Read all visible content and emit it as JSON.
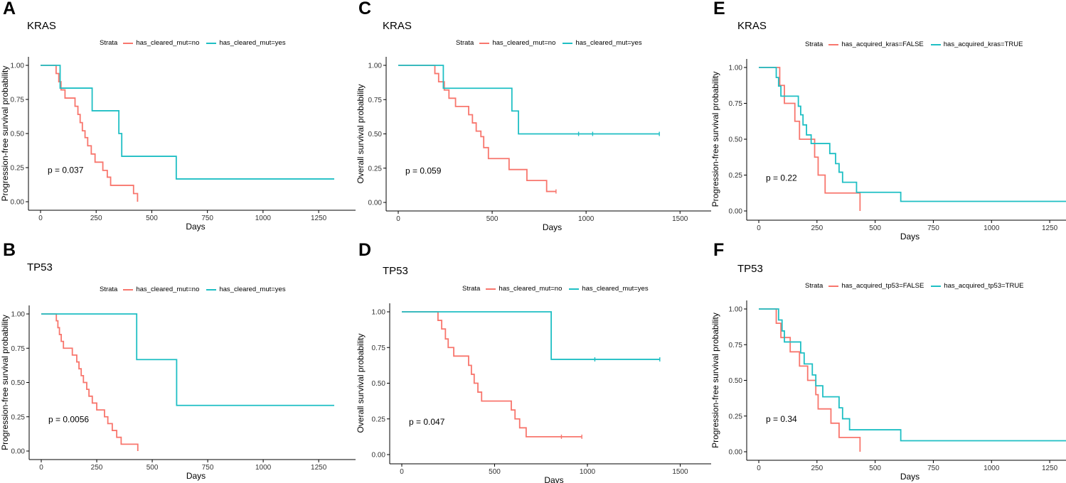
{
  "colors": {
    "no": "#f8766d",
    "yes": "#1fbfc4"
  },
  "chart_data": [
    {
      "id": "A",
      "panel": "A",
      "gene": "KRAS",
      "type": "line",
      "legend": {
        "title": "Strata",
        "entries": [
          "has_cleared_mut=no",
          "has_cleared_mut=yes"
        ]
      },
      "ylabel": "Progression-free survival probability",
      "xlabel": "Days",
      "pvalue": "p = 0.037",
      "xlim": [
        0,
        1320
      ],
      "ylim": [
        0,
        1
      ],
      "xticks": [
        0,
        250,
        500,
        750,
        1000,
        1250
      ],
      "yticks": [
        "0.00",
        "0.25",
        "0.50",
        "0.75",
        "1.00"
      ],
      "series": [
        {
          "name": "has_cleared_mut=no",
          "steps": [
            [
              0,
              1.0
            ],
            [
              70,
              0.94
            ],
            [
              82,
              0.88
            ],
            [
              92,
              0.82
            ],
            [
              110,
              0.76
            ],
            [
              155,
              0.7
            ],
            [
              168,
              0.64
            ],
            [
              178,
              0.58
            ],
            [
              188,
              0.52
            ],
            [
              200,
              0.47
            ],
            [
              212,
              0.41
            ],
            [
              228,
              0.35
            ],
            [
              245,
              0.29
            ],
            [
              280,
              0.23
            ],
            [
              300,
              0.18
            ],
            [
              315,
              0.12
            ],
            [
              418,
              0.06
            ],
            [
              436,
              0.0
            ]
          ],
          "end": 436,
          "censors": []
        },
        {
          "name": "has_cleared_mut=yes",
          "steps": [
            [
              0,
              1.0
            ],
            [
              88,
              0.833
            ],
            [
              232,
              0.667
            ],
            [
              352,
              0.5
            ],
            [
              365,
              0.333
            ],
            [
              610,
              0.167
            ]
          ],
          "end": 1320,
          "censors": []
        }
      ]
    },
    {
      "id": "C",
      "panel": "C",
      "gene": "KRAS",
      "type": "line",
      "legend": {
        "title": "Strata",
        "entries": [
          "has_cleared_mut=no",
          "has_cleared_mut=yes"
        ]
      },
      "ylabel": "Overall survival probability",
      "xlabel": "Days",
      "pvalue": "p = 0.059",
      "xlim": [
        0,
        1590
      ],
      "ylim": [
        0,
        1
      ],
      "xticks": [
        0,
        500,
        1000,
        1500
      ],
      "yticks": [
        "0.00",
        "0.25",
        "0.50",
        "0.75",
        "1.00"
      ],
      "series": [
        {
          "name": "has_cleared_mut=no",
          "steps": [
            [
              0,
              1.0
            ],
            [
              195,
              0.94
            ],
            [
              215,
              0.88
            ],
            [
              245,
              0.82
            ],
            [
              270,
              0.76
            ],
            [
              305,
              0.7
            ],
            [
              375,
              0.64
            ],
            [
              395,
              0.58
            ],
            [
              415,
              0.52
            ],
            [
              440,
              0.48
            ],
            [
              455,
              0.4
            ],
            [
              480,
              0.32
            ],
            [
              590,
              0.24
            ],
            [
              685,
              0.16
            ],
            [
              790,
              0.08
            ]
          ],
          "end": 840,
          "censors": [
            840
          ]
        },
        {
          "name": "has_cleared_mut=yes",
          "steps": [
            [
              0,
              1.0
            ],
            [
              240,
              0.833
            ],
            [
              605,
              0.667
            ],
            [
              640,
              0.5
            ]
          ],
          "end": 1390,
          "censors": [
            960,
            1035,
            1390
          ]
        }
      ]
    },
    {
      "id": "E",
      "panel": "E",
      "gene": "KRAS",
      "type": "line",
      "legend": {
        "title": "Strata",
        "entries": [
          "has_acquired_kras=FALSE",
          "has_acquired_kras=TRUE"
        ]
      },
      "ylabel": "Progression-free survival probability",
      "xlabel": "Days",
      "pvalue": "p = 0.22",
      "xlim": [
        0,
        1320
      ],
      "ylim": [
        0,
        1
      ],
      "xticks": [
        0,
        250,
        500,
        750,
        1000,
        1250
      ],
      "yticks": [
        "0.00",
        "0.25",
        "0.50",
        "0.75",
        "1.00"
      ],
      "series": [
        {
          "name": "has_acquired_kras=FALSE",
          "steps": [
            [
              0,
              1.0
            ],
            [
              90,
              0.875
            ],
            [
              110,
              0.75
            ],
            [
              155,
              0.625
            ],
            [
              175,
              0.5
            ],
            [
              240,
              0.375
            ],
            [
              255,
              0.25
            ],
            [
              285,
              0.125
            ],
            [
              435,
              0.0
            ]
          ],
          "end": 435,
          "censors": []
        },
        {
          "name": "has_acquired_kras=TRUE",
          "steps": [
            [
              0,
              1.0
            ],
            [
              75,
              0.93
            ],
            [
              85,
              0.87
            ],
            [
              95,
              0.8
            ],
            [
              170,
              0.73
            ],
            [
              180,
              0.67
            ],
            [
              190,
              0.6
            ],
            [
              205,
              0.53
            ],
            [
              225,
              0.47
            ],
            [
              305,
              0.4
            ],
            [
              330,
              0.33
            ],
            [
              345,
              0.27
            ],
            [
              360,
              0.2
            ],
            [
              420,
              0.13
            ],
            [
              610,
              0.067
            ]
          ],
          "end": 1320,
          "censors": []
        }
      ]
    },
    {
      "id": "B",
      "panel": "B",
      "gene": "TP53",
      "type": "line",
      "legend": {
        "title": "Strata",
        "entries": [
          "has_cleared_mut=no",
          "has_cleared_mut=yes"
        ]
      },
      "ylabel": "Progression-free survival probability",
      "xlabel": "Days",
      "pvalue": "p = 0.0056",
      "xlim": [
        0,
        1320
      ],
      "ylim": [
        0,
        1
      ],
      "xticks": [
        0,
        250,
        500,
        750,
        1000,
        1250
      ],
      "yticks": [
        "0.00",
        "0.25",
        "0.50",
        "0.75",
        "1.00"
      ],
      "series": [
        {
          "name": "has_cleared_mut=no",
          "steps": [
            [
              0,
              1.0
            ],
            [
              68,
              0.95
            ],
            [
              75,
              0.9
            ],
            [
              82,
              0.85
            ],
            [
              90,
              0.8
            ],
            [
              100,
              0.75
            ],
            [
              140,
              0.7
            ],
            [
              160,
              0.65
            ],
            [
              170,
              0.6
            ],
            [
              180,
              0.55
            ],
            [
              190,
              0.5
            ],
            [
              205,
              0.45
            ],
            [
              215,
              0.4
            ],
            [
              230,
              0.35
            ],
            [
              250,
              0.3
            ],
            [
              285,
              0.25
            ],
            [
              300,
              0.2
            ],
            [
              320,
              0.15
            ],
            [
              340,
              0.1
            ],
            [
              360,
              0.05
            ],
            [
              435,
              0.0
            ]
          ],
          "end": 435,
          "censors": []
        },
        {
          "name": "has_cleared_mut=yes",
          "steps": [
            [
              0,
              1.0
            ],
            [
              430,
              0.667
            ],
            [
              610,
              0.333
            ]
          ],
          "end": 1320,
          "censors": []
        }
      ]
    },
    {
      "id": "D",
      "panel": "D",
      "gene": "TP53",
      "type": "line",
      "legend": {
        "title": "Strata",
        "entries": [
          "has_cleared_mut=no",
          "has_cleared_mut=yes"
        ]
      },
      "ylabel": "Overall survival probability",
      "xlabel": "Days",
      "pvalue": "p = 0.047",
      "xlim": [
        0,
        1590
      ],
      "ylim": [
        0,
        1
      ],
      "xticks": [
        0,
        500,
        1000,
        1500
      ],
      "yticks": [
        "0.00",
        "0.25",
        "0.50",
        "0.75",
        "1.00"
      ],
      "series": [
        {
          "name": "has_cleared_mut=no",
          "steps": [
            [
              0,
              1.0
            ],
            [
              195,
              0.94
            ],
            [
              215,
              0.88
            ],
            [
              235,
              0.81
            ],
            [
              250,
              0.75
            ],
            [
              280,
              0.69
            ],
            [
              360,
              0.625
            ],
            [
              375,
              0.5625
            ],
            [
              390,
              0.5
            ],
            [
              410,
              0.4375
            ],
            [
              430,
              0.375
            ],
            [
              590,
              0.3125
            ],
            [
              610,
              0.25
            ],
            [
              635,
              0.1875
            ],
            [
              670,
              0.125
            ]
          ],
          "end": 970,
          "censors": [
            860,
            970
          ]
        },
        {
          "name": "has_cleared_mut=yes",
          "steps": [
            [
              0,
              1.0
            ],
            [
              805,
              0.667
            ]
          ],
          "end": 1390,
          "censors": [
            1040,
            1390
          ]
        }
      ]
    },
    {
      "id": "F",
      "panel": "F",
      "gene": "TP53",
      "type": "line",
      "legend": {
        "title": "Strata",
        "entries": [
          "has_acquired_tp53=FALSE",
          "has_acquired_tp53=TRUE"
        ]
      },
      "ylabel": "Progression-free survival probability",
      "xlabel": "Days",
      "pvalue": "p = 0.34",
      "xlim": [
        0,
        1320
      ],
      "ylim": [
        0,
        1
      ],
      "xticks": [
        0,
        250,
        500,
        750,
        1000,
        1250
      ],
      "yticks": [
        "0.00",
        "0.25",
        "0.50",
        "0.75",
        "1.00"
      ],
      "series": [
        {
          "name": "has_acquired_tp53=FALSE",
          "steps": [
            [
              0,
              1.0
            ],
            [
              75,
              0.9
            ],
            [
              95,
              0.8
            ],
            [
              135,
              0.7
            ],
            [
              175,
              0.6
            ],
            [
              210,
              0.5
            ],
            [
              245,
              0.4
            ],
            [
              255,
              0.3
            ],
            [
              310,
              0.2
            ],
            [
              345,
              0.1
            ],
            [
              435,
              0.0
            ]
          ],
          "end": 435,
          "censors": []
        },
        {
          "name": "has_acquired_tp53=TRUE",
          "steps": [
            [
              0,
              1.0
            ],
            [
              85,
              0.923
            ],
            [
              100,
              0.846
            ],
            [
              110,
              0.769
            ],
            [
              180,
              0.692
            ],
            [
              195,
              0.615
            ],
            [
              230,
              0.538
            ],
            [
              245,
              0.462
            ],
            [
              275,
              0.385
            ],
            [
              345,
              0.308
            ],
            [
              360,
              0.231
            ],
            [
              390,
              0.154
            ],
            [
              610,
              0.077
            ]
          ],
          "end": 1320,
          "censors": []
        }
      ]
    }
  ]
}
